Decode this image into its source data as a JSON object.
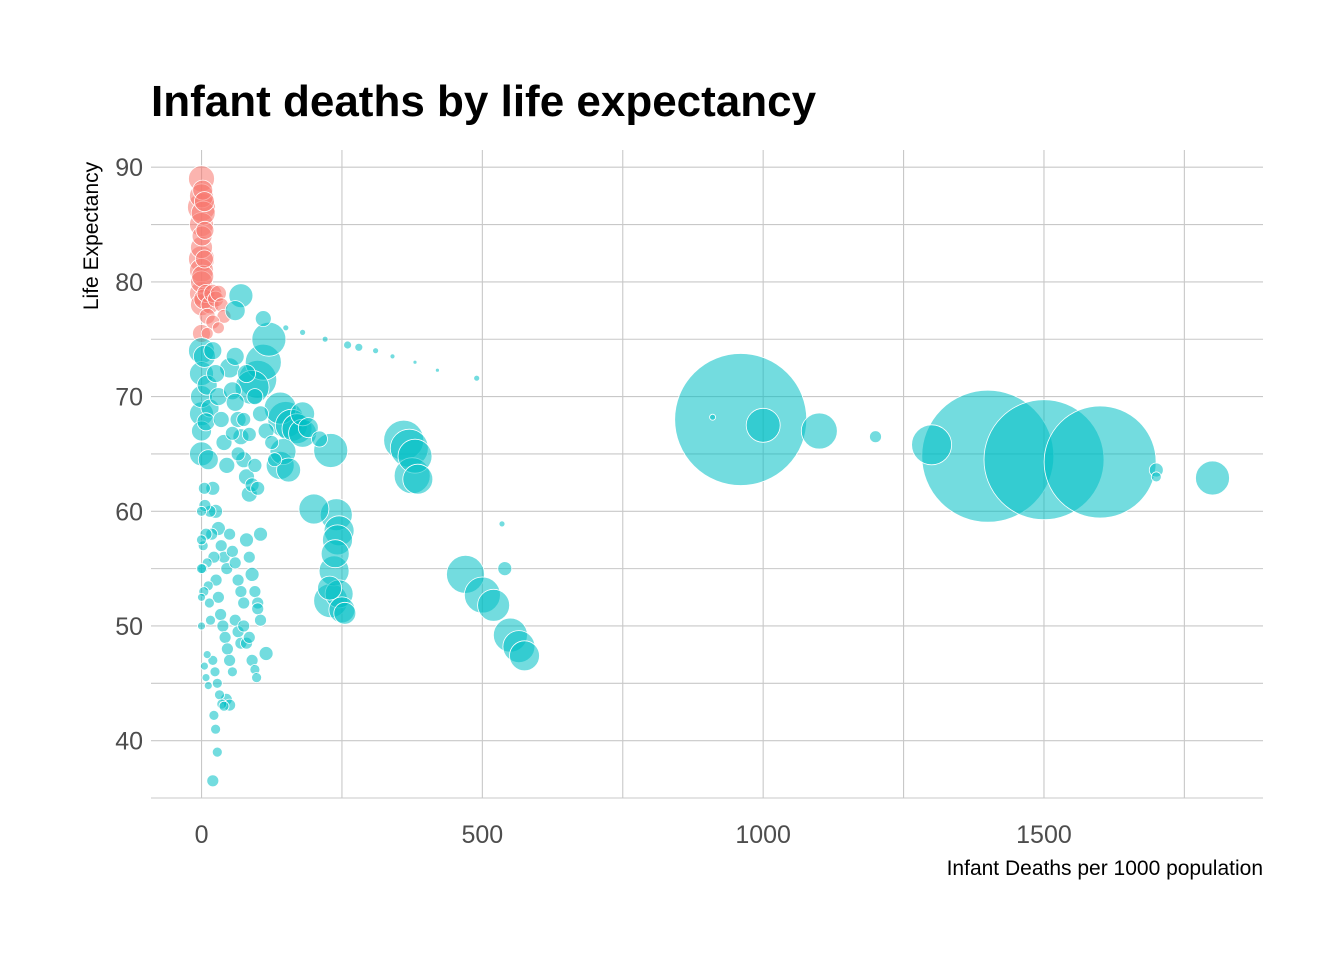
{
  "chart_data": {
    "type": "scatter",
    "title": "Infant deaths by life expectancy",
    "xlabel": "Infant Deaths per 1000 population",
    "ylabel": "Life Expectancy",
    "xlim": [
      -90,
      1890
    ],
    "ylim": [
      35,
      91.5
    ],
    "x_ticks": [
      0,
      500,
      1000,
      1500
    ],
    "x_tick_labels": [
      "0",
      "500",
      "1000",
      "1500"
    ],
    "y_ticks": [
      40,
      50,
      60,
      70,
      80,
      90
    ],
    "y_tick_labels": [
      "40",
      "50",
      "60",
      "70",
      "80",
      "90"
    ],
    "grid": true,
    "legend": "none",
    "size_encoding": "bubble area",
    "colors": {
      "group_a": "#F8766D",
      "group_b": "#00BFC4",
      "stroke": "#ffffff"
    },
    "series": [
      {
        "color": "#F8766D",
        "points": [
          [
            0,
            89,
            13
          ],
          [
            0,
            87.5,
            12
          ],
          [
            0,
            86.5,
            14
          ],
          [
            0,
            85,
            12
          ],
          [
            0,
            83,
            11
          ],
          [
            0,
            82,
            13
          ],
          [
            0,
            81,
            12
          ],
          [
            0,
            80,
            11
          ],
          [
            0,
            79,
            12
          ],
          [
            0,
            78,
            11
          ],
          [
            2,
            88,
            10
          ],
          [
            3,
            86,
            12
          ],
          [
            1,
            84,
            10
          ],
          [
            2,
            80.5,
            11
          ],
          [
            4,
            78.5,
            10
          ],
          [
            5,
            82,
            9
          ],
          [
            8,
            79,
            9
          ],
          [
            10,
            77,
            8
          ],
          [
            15,
            78,
            9
          ],
          [
            20,
            79,
            9
          ],
          [
            25,
            78.5,
            8
          ],
          [
            30,
            79,
            8
          ],
          [
            35,
            78,
            7
          ],
          [
            40,
            77,
            7
          ],
          [
            20,
            76.5,
            7
          ],
          [
            30,
            76,
            6
          ],
          [
            10,
            75.5,
            6
          ],
          [
            0,
            75.5,
            9
          ],
          [
            5,
            87,
            10
          ],
          [
            6,
            84.5,
            9
          ]
        ]
      },
      {
        "color": "#00BFC4",
        "points": [
          [
            960,
            68,
            66
          ],
          [
            1400,
            64.8,
            66
          ],
          [
            1500,
            64.5,
            60
          ],
          [
            1600,
            64.3,
            56
          ],
          [
            1000,
            67.5,
            17
          ],
          [
            1100,
            67,
            18
          ],
          [
            1300,
            65.8,
            20
          ],
          [
            1800,
            62.9,
            17
          ],
          [
            1200,
            66.5,
            6
          ],
          [
            1700,
            63.6,
            7
          ],
          [
            1700,
            63,
            5
          ],
          [
            910,
            68.2,
            3
          ],
          [
            360,
            66.2,
            20
          ],
          [
            370,
            65.5,
            19
          ],
          [
            380,
            64.8,
            17
          ],
          [
            375,
            63.1,
            18
          ],
          [
            385,
            62.8,
            15
          ],
          [
            470,
            54.5,
            19
          ],
          [
            500,
            52.7,
            18
          ],
          [
            520,
            51.8,
            16
          ],
          [
            550,
            49.2,
            17
          ],
          [
            565,
            48.2,
            16
          ],
          [
            575,
            47.4,
            15
          ],
          [
            540,
            55,
            7
          ],
          [
            535,
            58.9,
            3
          ],
          [
            240,
            59.7,
            16
          ],
          [
            245,
            58.3,
            15
          ],
          [
            242,
            57.5,
            15
          ],
          [
            238,
            56.3,
            14
          ],
          [
            236,
            54.8,
            15
          ],
          [
            230,
            52.2,
            17
          ],
          [
            250,
            51.4,
            13
          ],
          [
            245,
            52.8,
            14
          ],
          [
            228,
            53.3,
            12
          ],
          [
            255,
            51.1,
            11
          ],
          [
            230,
            65.3,
            17
          ],
          [
            200,
            60.2,
            15
          ],
          [
            120,
            75,
            17
          ],
          [
            110,
            73,
            18
          ],
          [
            100,
            71.5,
            19
          ],
          [
            90,
            70.8,
            17
          ],
          [
            140,
            69,
            16
          ],
          [
            150,
            68,
            18
          ],
          [
            160,
            67.5,
            16
          ],
          [
            170,
            67.2,
            15
          ],
          [
            180,
            66.8,
            14
          ],
          [
            145,
            65.2,
            13
          ],
          [
            140,
            64,
            14
          ],
          [
            155,
            63.6,
            12
          ],
          [
            70,
            78.8,
            12
          ],
          [
            60,
            77.5,
            10
          ],
          [
            110,
            76.8,
            8
          ],
          [
            180,
            68.5,
            12
          ],
          [
            190,
            67.3,
            10
          ],
          [
            210,
            66.3,
            8
          ],
          [
            150,
            76,
            3
          ],
          [
            180,
            75.6,
            3
          ],
          [
            220,
            75,
            3
          ],
          [
            260,
            74.5,
            4
          ],
          [
            280,
            74.3,
            4
          ],
          [
            310,
            74,
            3
          ],
          [
            340,
            73.5,
            2.5
          ],
          [
            380,
            73,
            2
          ],
          [
            420,
            72.3,
            2
          ],
          [
            490,
            71.6,
            3
          ],
          [
            0,
            74,
            13
          ],
          [
            0,
            72,
            12
          ],
          [
            0,
            70,
            11
          ],
          [
            0,
            68.5,
            12
          ],
          [
            0,
            67,
            10
          ],
          [
            0,
            65,
            12
          ],
          [
            5,
            73.5,
            11
          ],
          [
            10,
            71,
            10
          ],
          [
            15,
            69,
            9
          ],
          [
            8,
            67.8,
            9
          ],
          [
            12,
            64.5,
            10
          ],
          [
            20,
            74,
            9
          ],
          [
            25,
            72,
            9
          ],
          [
            30,
            70,
            9
          ],
          [
            35,
            68,
            8
          ],
          [
            40,
            66,
            8
          ],
          [
            45,
            64,
            8
          ],
          [
            50,
            72.5,
            10
          ],
          [
            55,
            70.5,
            9
          ],
          [
            60,
            69.5,
            9
          ],
          [
            65,
            68,
            8
          ],
          [
            70,
            66.5,
            8
          ],
          [
            75,
            64.5,
            8
          ],
          [
            80,
            63,
            8
          ],
          [
            85,
            61.5,
            8
          ],
          [
            90,
            62.3,
            7
          ],
          [
            95,
            64,
            7
          ],
          [
            100,
            62,
            7
          ],
          [
            20,
            62,
            7
          ],
          [
            25,
            60,
            7
          ],
          [
            30,
            58.5,
            7
          ],
          [
            35,
            57,
            6
          ],
          [
            40,
            56,
            6
          ],
          [
            45,
            55,
            6
          ],
          [
            50,
            58,
            6
          ],
          [
            55,
            56.5,
            6
          ],
          [
            60,
            55.5,
            6
          ],
          [
            65,
            54,
            6
          ],
          [
            70,
            53,
            6
          ],
          [
            75,
            52,
            6
          ],
          [
            80,
            57.5,
            7
          ],
          [
            85,
            56,
            6
          ],
          [
            90,
            54.5,
            7
          ],
          [
            95,
            53,
            6
          ],
          [
            100,
            52,
            6
          ],
          [
            105,
            58,
            7
          ],
          [
            15,
            60,
            6
          ],
          [
            18,
            58,
            6
          ],
          [
            22,
            56,
            6
          ],
          [
            26,
            54,
            6
          ],
          [
            30,
            52.5,
            6
          ],
          [
            34,
            51,
            6
          ],
          [
            10,
            55.5,
            5
          ],
          [
            12,
            53.5,
            5
          ],
          [
            14,
            52,
            5
          ],
          [
            16,
            50.5,
            5
          ],
          [
            38,
            50,
            6
          ],
          [
            42,
            49,
            6
          ],
          [
            46,
            48,
            6
          ],
          [
            50,
            47,
            6
          ],
          [
            55,
            46,
            5
          ],
          [
            60,
            50.5,
            6
          ],
          [
            65,
            49.5,
            6
          ],
          [
            70,
            48.5,
            6
          ],
          [
            75,
            50,
            6
          ],
          [
            80,
            48.5,
            6
          ],
          [
            85,
            49,
            6
          ],
          [
            90,
            47,
            6
          ],
          [
            95,
            46.2,
            5
          ],
          [
            98,
            45.5,
            5
          ],
          [
            100,
            51.5,
            6
          ],
          [
            105,
            50.5,
            6
          ],
          [
            115,
            47.6,
            7
          ],
          [
            20,
            47,
            5
          ],
          [
            24,
            46,
            5
          ],
          [
            28,
            45,
            5
          ],
          [
            32,
            44,
            5
          ],
          [
            36,
            43.2,
            5
          ],
          [
            40,
            43,
            5
          ],
          [
            44,
            43.6,
            6
          ],
          [
            50,
            43.1,
            6
          ],
          [
            10,
            47.5,
            4
          ],
          [
            5,
            46.5,
            4
          ],
          [
            8,
            45.5,
            4
          ],
          [
            12,
            44.8,
            4
          ],
          [
            22,
            42.2,
            5
          ],
          [
            25,
            41,
            5
          ],
          [
            28,
            39,
            5
          ],
          [
            20,
            36.5,
            6
          ],
          [
            5,
            62,
            6
          ],
          [
            8,
            58,
            6
          ],
          [
            3,
            57,
            5
          ],
          [
            6,
            60.5,
            6
          ],
          [
            4,
            53,
            5
          ],
          [
            2,
            55,
            5
          ],
          [
            0,
            60,
            5
          ],
          [
            0,
            57.5,
            5
          ],
          [
            0,
            55,
            5
          ],
          [
            0,
            52.5,
            4
          ],
          [
            0,
            50,
            4
          ],
          [
            60,
            73.5,
            9
          ],
          [
            80,
            72,
            9
          ],
          [
            95,
            70,
            8
          ],
          [
            105,
            68.5,
            8
          ],
          [
            115,
            67,
            8
          ],
          [
            125,
            66,
            7
          ],
          [
            130,
            64.5,
            7
          ],
          [
            75,
            68,
            7
          ],
          [
            85,
            66.7,
            7
          ],
          [
            55,
            66.8,
            7
          ],
          [
            65,
            65,
            7
          ]
        ]
      }
    ]
  }
}
